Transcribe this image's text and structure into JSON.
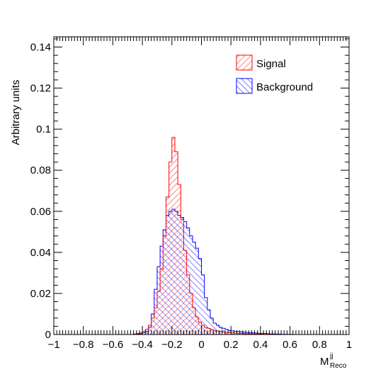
{
  "chart_data": {
    "type": "histogram",
    "title": "",
    "xlabel": "M",
    "xlabel_superscript": "jj",
    "xlabel_subscript": "Reco",
    "ylabel": "Arbitrary units",
    "xlim": [
      -1,
      1
    ],
    "ylim": [
      0,
      0.145
    ],
    "xticks": [
      -1,
      -0.8,
      -0.6,
      -0.4,
      -0.2,
      0,
      0.2,
      0.4,
      0.6,
      0.8,
      1
    ],
    "xtick_labels": [
      "−1",
      "−0.8",
      "−0.6",
      "−0.4",
      "−0.2",
      "0",
      "0.2",
      "0.4",
      "0.6",
      "0.8",
      "1"
    ],
    "yticks": [
      0,
      0.02,
      0.04,
      0.06,
      0.08,
      0.1,
      0.12,
      0.14
    ],
    "ytick_labels": [
      "0",
      "0.02",
      "0.04",
      "0.06",
      "0.08",
      "0.1",
      "0.12",
      "0.14"
    ],
    "grid": false,
    "legend_position": "top-right",
    "bin_width": 0.02,
    "bin_edges_start": -1,
    "series": [
      {
        "name": "Signal",
        "color": "#ff0000",
        "hatch": "diagonal-down",
        "values": [
          0,
          0,
          0,
          0,
          0,
          0,
          0,
          0,
          0,
          0,
          0,
          0,
          0,
          0,
          0,
          0,
          0,
          0,
          0,
          0,
          0,
          0,
          0,
          0,
          0,
          0,
          0,
          0.0003,
          0.0005,
          0.0008,
          0.0015,
          0.0025,
          0.0045,
          0.008,
          0.013,
          0.021,
          0.032,
          0.048,
          0.067,
          0.084,
          0.096,
          0.089,
          0.073,
          0.056,
          0.041,
          0.029,
          0.02,
          0.013,
          0.0085,
          0.006,
          0.0045,
          0.0035,
          0.003,
          0.0025,
          0.002,
          0.0017,
          0.0015,
          0.0012,
          0.001,
          0.0009,
          0.0008,
          0.0007,
          0.0006,
          0.0005,
          0.0004,
          0.0004,
          0.0003,
          0.0003,
          0.0002,
          0.0002,
          0.0002,
          0.0001,
          0.0001,
          0.0001,
          0.0001,
          0.0001,
          0,
          0,
          0,
          0,
          0,
          0,
          0,
          0,
          0,
          0,
          0,
          0,
          0,
          0,
          0,
          0,
          0,
          0,
          0,
          0,
          0,
          0,
          0,
          0
        ]
      },
      {
        "name": "Background",
        "color": "#0000ff",
        "hatch": "crosshatch",
        "values": [
          0,
          0,
          0,
          0,
          0,
          0,
          0,
          0,
          0,
          0,
          0,
          0,
          0,
          0,
          0,
          0,
          0,
          0,
          0,
          0,
          0,
          0,
          0,
          0,
          0,
          0,
          0,
          0,
          0.0002,
          0.0004,
          0.0008,
          0.0015,
          0.0035,
          0.01,
          0.022,
          0.033,
          0.043,
          0.051,
          0.058,
          0.06,
          0.061,
          0.06,
          0.058,
          0.057,
          0.055,
          0.052,
          0.048,
          0.045,
          0.042,
          0.037,
          0.029,
          0.018,
          0.012,
          0.008,
          0.0055,
          0.0045,
          0.0035,
          0.003,
          0.0025,
          0.002,
          0.0018,
          0.0016,
          0.0015,
          0.0013,
          0.0011,
          0.001,
          0.0009,
          0.0008,
          0.0007,
          0.0006,
          0.0005,
          0.0005,
          0.0004,
          0.0003,
          0.0003,
          0.0002,
          0.0002,
          0.0001,
          0.0001,
          0.0001,
          0.0001,
          0,
          0,
          0,
          0,
          0,
          0,
          0,
          0,
          0,
          0,
          0,
          0,
          0,
          0,
          0,
          0,
          0,
          0,
          0
        ]
      }
    ]
  }
}
